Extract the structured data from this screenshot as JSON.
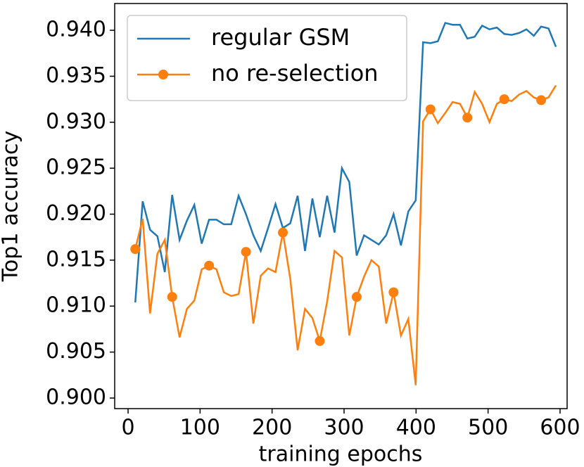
{
  "chart_data": {
    "type": "line",
    "xlabel": "training epochs",
    "ylabel": "Top1 accuracy",
    "x": [
      10,
      20.25,
      30.5,
      40.75,
      51,
      61.25,
      71.5,
      81.75,
      92,
      102.25,
      112.5,
      122.75,
      133,
      143.25,
      153.5,
      163.75,
      174,
      184.25,
      194.5,
      204.75,
      215,
      225.25,
      235.5,
      245.75,
      256,
      266.25,
      276.5,
      286.75,
      297,
      307.25,
      317.5,
      327.75,
      338,
      348.25,
      358.5,
      368.75,
      379,
      389.25,
      399.5,
      409.75,
      420,
      430.25,
      440.5,
      450.75,
      461,
      471.25,
      481.5,
      491.75,
      502,
      512.25,
      522.5,
      532.75,
      543,
      553.25,
      563.5,
      573.75,
      584,
      594.25
    ],
    "series": [
      {
        "name": "regular GSM",
        "color": "#1f77b4",
        "marker": "none",
        "values": [
          0.9104,
          0.9214,
          0.9183,
          0.9176,
          0.9137,
          0.9221,
          0.9172,
          0.9193,
          0.921,
          0.9168,
          0.9194,
          0.9194,
          0.9189,
          0.9189,
          0.922,
          0.92,
          0.9177,
          0.916,
          0.9185,
          0.9211,
          0.9185,
          0.919,
          0.922,
          0.916,
          0.9217,
          0.9175,
          0.922,
          0.918,
          0.925,
          0.9235,
          0.9155,
          0.9177,
          0.9172,
          0.9167,
          0.9177,
          0.92,
          0.9166,
          0.9203,
          0.9215,
          0.9387,
          0.9386,
          0.9388,
          0.9408,
          0.9406,
          0.9406,
          0.9391,
          0.9393,
          0.9405,
          0.9401,
          0.9403,
          0.9396,
          0.9395,
          0.9397,
          0.9401,
          0.9394,
          0.9404,
          0.9402,
          0.9382
        ]
      },
      {
        "name": "no re-selection",
        "color": "#ff7f0e",
        "marker": "circle",
        "markevery": 5,
        "values": [
          0.9162,
          0.9195,
          0.9092,
          0.9157,
          0.9172,
          0.911,
          0.9066,
          0.9097,
          0.9106,
          0.914,
          0.9144,
          0.914,
          0.9115,
          0.9111,
          0.9113,
          0.9159,
          0.9081,
          0.9133,
          0.9141,
          0.9137,
          0.918,
          0.913,
          0.9052,
          0.9097,
          0.9087,
          0.9062,
          0.9105,
          0.916,
          0.9153,
          0.9068,
          0.911,
          0.9132,
          0.915,
          0.9143,
          0.9081,
          0.9115,
          0.9068,
          0.9086,
          0.9014,
          0.9301,
          0.9314,
          0.9299,
          0.931,
          0.9322,
          0.932,
          0.9305,
          0.9333,
          0.932,
          0.93,
          0.932,
          0.9325,
          0.9323,
          0.933,
          0.9334,
          0.9327,
          0.9324,
          0.9327,
          0.934
        ]
      }
    ],
    "xlim": [
      -18.6,
      609.8
    ],
    "xticks": [
      0,
      100,
      200,
      300,
      400,
      500,
      600
    ],
    "ylim": [
      0.89885,
      0.94291
    ],
    "yticks": [
      {
        "value": 0.9,
        "label": "0.900"
      },
      0.905,
      {
        "value": 0.91,
        "label": "0.910"
      },
      0.915,
      {
        "value": 0.92,
        "label": "0.920"
      },
      0.925,
      {
        "value": 0.93,
        "label": "0.930"
      },
      0.935,
      {
        "value": 0.94,
        "label": "0.940"
      }
    ],
    "legend": "upper left",
    "grid": false
  }
}
